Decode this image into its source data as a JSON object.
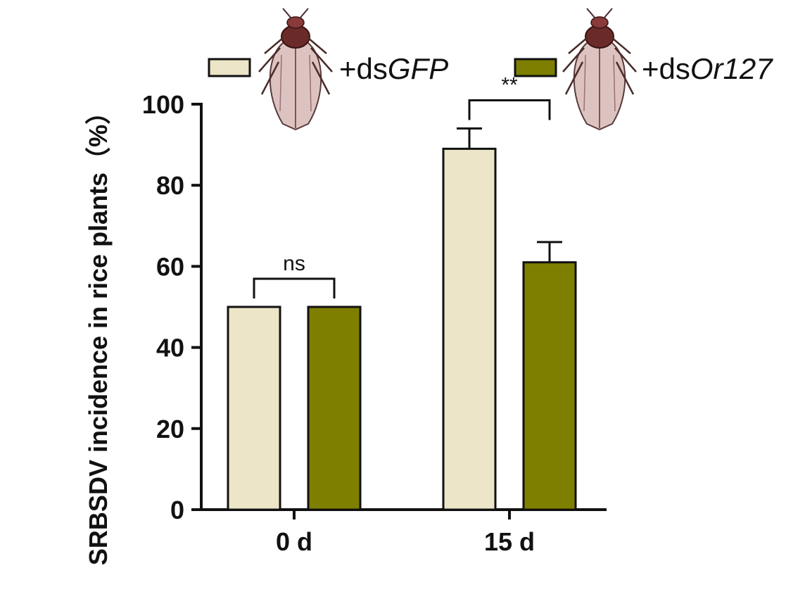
{
  "chart_data": {
    "type": "bar",
    "title": "",
    "xlabel": "",
    "ylabel": "SRBSDV incidence in rice plants（%）",
    "ylim": [
      0,
      100
    ],
    "yticks": [
      "0",
      "20",
      "40",
      "60",
      "80",
      "100"
    ],
    "categories": [
      "0 d",
      "15 d"
    ],
    "series": [
      {
        "name": "+dsGFP",
        "prefix": "+ds",
        "gene": "GFP",
        "color": "#ede5c7",
        "values": [
          50,
          89
        ],
        "errors": [
          0,
          5
        ]
      },
      {
        "name": "+dsOr127",
        "prefix": "+ds",
        "gene": "Or127",
        "color": "#7e7f00",
        "values": [
          50,
          61
        ],
        "errors": [
          0,
          5
        ]
      }
    ],
    "annotations": [
      {
        "category": "0 d",
        "text": "ns"
      },
      {
        "category": "15 d",
        "text": "**"
      }
    ],
    "legend_position": "top"
  },
  "legend": {
    "insect_icon": "planthopper-icon"
  }
}
